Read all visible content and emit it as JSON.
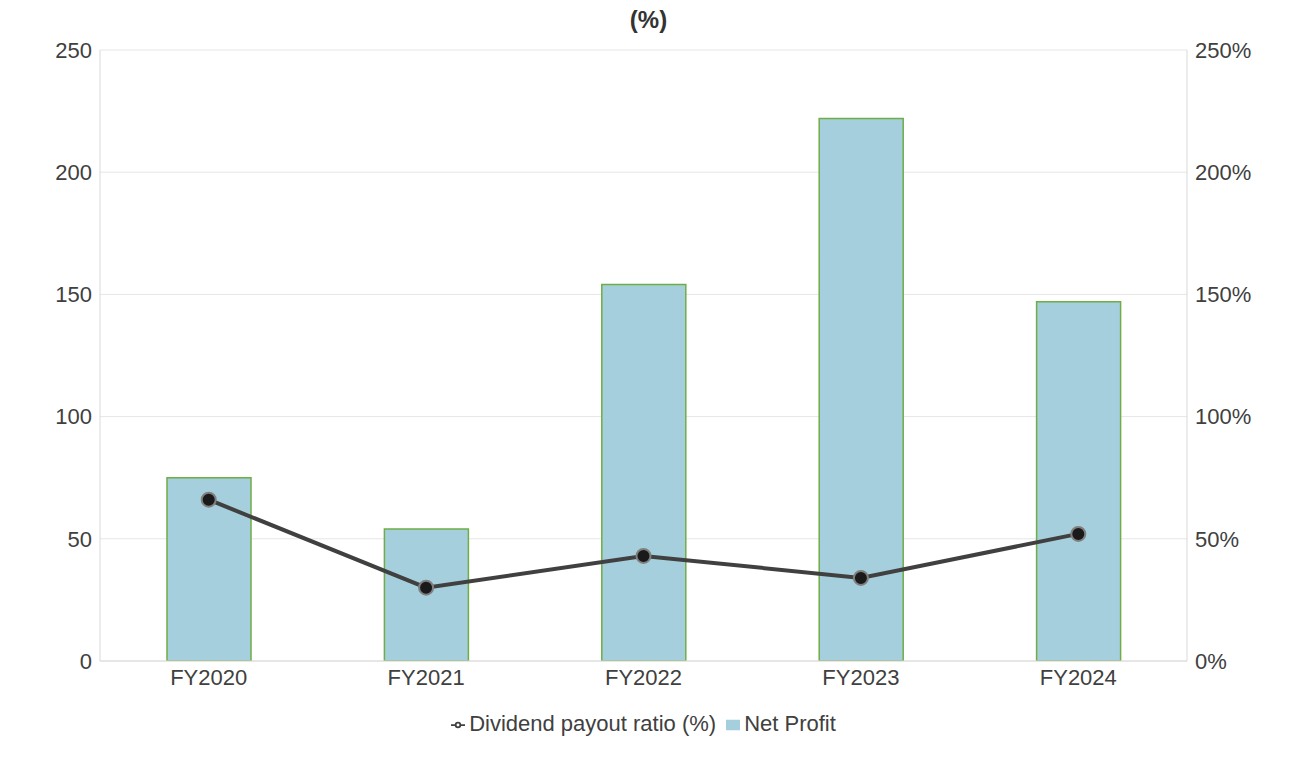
{
  "chart_data": {
    "type": "bar",
    "title": "(%)",
    "categories": [
      "FY2020",
      "FY2021",
      "FY2022",
      "FY2023",
      "FY2024"
    ],
    "series": [
      {
        "name": "Net Profit",
        "type": "bar",
        "color": "#a5cfdc",
        "values": [
          75,
          54,
          154,
          222,
          147
        ]
      },
      {
        "name": "Dividend payout ratio (%)",
        "type": "line",
        "color": "#404040",
        "marker": "circle",
        "axis": "y2",
        "values": [
          66,
          30,
          43,
          34,
          52
        ]
      }
    ],
    "ylim": [
      0,
      250
    ],
    "yticks": [
      0,
      50,
      100,
      150,
      200,
      250
    ],
    "y2lim": [
      0,
      250
    ],
    "y2ticks": [
      {
        "value": 0,
        "label": "0%"
      },
      {
        "value": 50,
        "label": "50%"
      },
      {
        "value": 100,
        "label": "100%"
      },
      {
        "value": 150,
        "label": "150%"
      },
      {
        "value": 200,
        "label": "200%"
      },
      {
        "value": 250,
        "label": "250%"
      }
    ],
    "grid": true,
    "legend": "bottom"
  }
}
